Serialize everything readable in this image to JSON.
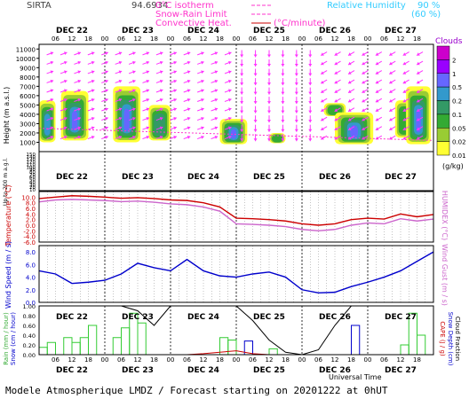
{
  "header": {
    "station": "SIRTA",
    "code": "94.6934",
    "legend_left": [
      {
        "label": "0°C isotherm",
        "color": "#ff33cc"
      },
      {
        "label": "Snow-Rain Limit",
        "color": "#ff33cc"
      },
      {
        "label": "Convective Heat.",
        "color": "#ff33cc"
      }
    ],
    "conv_unit": "(°C/minute)",
    "rh_label": "Relative Humidity",
    "rh_values": [
      "90 %",
      "(60 %)"
    ],
    "rh_color": "#33ccff"
  },
  "time_axis": {
    "days": [
      "DEC 22",
      "DEC 23",
      "DEC 24",
      "DEC 25",
      "DEC 26",
      "DEC 27"
    ],
    "hours": [
      "06",
      "12",
      "18",
      "00",
      "06",
      "12",
      "18",
      "00",
      "06",
      "12",
      "18",
      "00",
      "06",
      "12",
      "18",
      "00",
      "06",
      "12",
      "18",
      "00",
      "06",
      "12",
      "18"
    ],
    "xlabel": "Universal Time"
  },
  "footer": "Modele Atmospherique LMDZ / Forecast starting on 20201222 at 0hUT",
  "chart_data": [
    {
      "type": "heatmap",
      "title": "Clouds",
      "ylabel": "Height (m a.s.l.)",
      "ylabel2": "Up to 200 m a.g.l.",
      "yticks": [
        "11000",
        "10000",
        "9000",
        "8000",
        "7000",
        "6000",
        "5000",
        "4000",
        "3000",
        "2000",
        "1000"
      ],
      "yticks_low": [
        "150",
        "140",
        "130",
        "120",
        "110",
        "100",
        "90",
        "80",
        "70",
        "60",
        "50",
        "40",
        "30",
        "20",
        "10"
      ],
      "colorbar_title": "Clouds",
      "colorbar_unit": "(g/kg)",
      "colorbar_labels": [
        "2",
        "1",
        "0.5",
        "0.2",
        "0.1",
        "0.05",
        "0.02",
        "0.01"
      ],
      "colorbar_colors": [
        "#cc00cc",
        "#9900ff",
        "#6666ff",
        "#3399cc",
        "#339966",
        "#33aa33",
        "#99cc33",
        "#ffff33"
      ],
      "cloud_blocks": [
        {
          "x0": 0,
          "x1": 6,
          "y0": 1000,
          "y1": 5500,
          "level": 4
        },
        {
          "x0": 8,
          "x1": 18,
          "y0": 1200,
          "y1": 6500,
          "level": 5
        },
        {
          "x0": 27,
          "x1": 37,
          "y0": 1000,
          "y1": 7000,
          "level": 5
        },
        {
          "x0": 40,
          "x1": 48,
          "y0": 1200,
          "y1": 5000,
          "level": 3
        },
        {
          "x0": 66,
          "x1": 76,
          "y0": 800,
          "y1": 3500,
          "level": 5
        },
        {
          "x0": 84,
          "x1": 90,
          "y0": 900,
          "y1": 2000,
          "level": 2
        },
        {
          "x0": 104,
          "x1": 112,
          "y0": 3800,
          "y1": 5200,
          "level": 2
        },
        {
          "x0": 108,
          "x1": 122,
          "y0": 800,
          "y1": 4200,
          "level": 5
        },
        {
          "x0": 130,
          "x1": 138,
          "y0": 1500,
          "y1": 5500,
          "level": 2
        },
        {
          "x0": 134,
          "x1": 143,
          "y0": 800,
          "y1": 7000,
          "level": 5
        }
      ]
    },
    {
      "type": "line",
      "ylabel": "Temperature (°C)",
      "ylabel2": "HUMIDEX (°C)",
      "yticks": [
        "10.0",
        "8.0",
        "6.0",
        "4.0",
        "2.0",
        "0.0",
        "-2.0",
        "-4.0",
        "-6.0"
      ],
      "ylim": [
        -6,
        12
      ],
      "x_hours": [
        0,
        6,
        12,
        18,
        24,
        30,
        36,
        42,
        48,
        54,
        60,
        66,
        72,
        78,
        84,
        90,
        96,
        102,
        108,
        114,
        120,
        126,
        132,
        138,
        144
      ],
      "series": [
        {
          "color": "#cc0000",
          "values": [
            9.5,
            10,
            10.5,
            10.3,
            10,
            9.6,
            9.8,
            9.5,
            9.0,
            8.8,
            8.0,
            6.5,
            2.5,
            2.3,
            2.0,
            1.5,
            0.5,
            0.0,
            0.5,
            2.0,
            2.5,
            2.2,
            4.0,
            3.0,
            3.8
          ]
        },
        {
          "color": "#cc66cc",
          "values": [
            8.3,
            9,
            9.2,
            9.0,
            8.8,
            8.4,
            8.6,
            8.2,
            7.6,
            7.3,
            6.5,
            5.0,
            0.5,
            0.3,
            0.0,
            -0.5,
            -1.5,
            -2.0,
            -1.5,
            0.0,
            0.8,
            0.5,
            2.3,
            1.5,
            2.2
          ]
        }
      ]
    },
    {
      "type": "line",
      "ylabel": "Wind Speed (m / s)",
      "ylabel2": "Wind Gust (m / s)",
      "yticks": [
        "8.0",
        "6.0",
        "4.0",
        "2.0",
        "0.0"
      ],
      "ylim": [
        0,
        9
      ],
      "x_hours": [
        0,
        6,
        12,
        18,
        24,
        30,
        36,
        42,
        48,
        54,
        60,
        66,
        72,
        78,
        84,
        90,
        96,
        102,
        108,
        114,
        120,
        126,
        132,
        138,
        144
      ],
      "series": [
        {
          "color": "#0000cc",
          "values": [
            5.0,
            4.5,
            3.0,
            3.2,
            3.5,
            4.5,
            6.2,
            5.5,
            5.0,
            6.8,
            5.0,
            4.2,
            4.0,
            4.5,
            4.8,
            4.0,
            2.0,
            1.5,
            1.6,
            2.5,
            3.2,
            4.0,
            5.0,
            6.5,
            8.0
          ]
        }
      ]
    },
    {
      "type": "bar",
      "ylabel": "Rain (mm / hour)",
      "ylabel2": "Snow (cm / hour)",
      "ylabel3": "CAPE (J / g)",
      "ylabel4": "Snow Depth (cm)",
      "ylabel5": "Cloud Fraction",
      "yticks": [
        "1.00",
        "0.80",
        "0.60",
        "0.40",
        "0.20",
        "0.00"
      ],
      "ylim": [
        0,
        1
      ],
      "green_bars": [
        {
          "x0": 0,
          "x1": 3,
          "value": 0.15
        },
        {
          "x0": 3,
          "x1": 6,
          "value": 0.25
        },
        {
          "x0": 9,
          "x1": 12,
          "value": 0.35
        },
        {
          "x0": 12,
          "x1": 15,
          "value": 0.25
        },
        {
          "x0": 15,
          "x1": 18,
          "value": 0.35
        },
        {
          "x0": 18,
          "x1": 21,
          "value": 0.6
        },
        {
          "x0": 27,
          "x1": 30,
          "value": 0.35
        },
        {
          "x0": 30,
          "x1": 33,
          "value": 0.55
        },
        {
          "x0": 33,
          "x1": 36,
          "value": 0.85
        },
        {
          "x0": 36,
          "x1": 39,
          "value": 0.65
        },
        {
          "x0": 66,
          "x1": 69,
          "value": 0.35
        },
        {
          "x0": 69,
          "x1": 72,
          "value": 0.3
        },
        {
          "x0": 84,
          "x1": 87,
          "value": 0.12
        },
        {
          "x0": 132,
          "x1": 135,
          "value": 0.2
        },
        {
          "x0": 135,
          "x1": 138,
          "value": 0.85
        },
        {
          "x0": 138,
          "x1": 141,
          "value": 0.4
        }
      ],
      "blue_bars": [
        {
          "x0": 75,
          "x1": 78,
          "value": 0.28
        },
        {
          "x0": 114,
          "x1": 117,
          "value": 0.6
        }
      ],
      "red_line": [
        0,
        0,
        0,
        0,
        0,
        0,
        0,
        0,
        0,
        0,
        0.02,
        0.05,
        0.08,
        0.02,
        0,
        0,
        0,
        0,
        0,
        0,
        0,
        0,
        0,
        0,
        0
      ],
      "black_line": [
        1,
        1,
        1,
        1,
        1,
        1,
        0.9,
        0.6,
        1,
        1,
        1,
        1,
        1,
        0.7,
        0.3,
        0.05,
        0,
        0.1,
        0.6,
        1,
        1,
        1,
        1,
        1,
        1
      ]
    }
  ]
}
